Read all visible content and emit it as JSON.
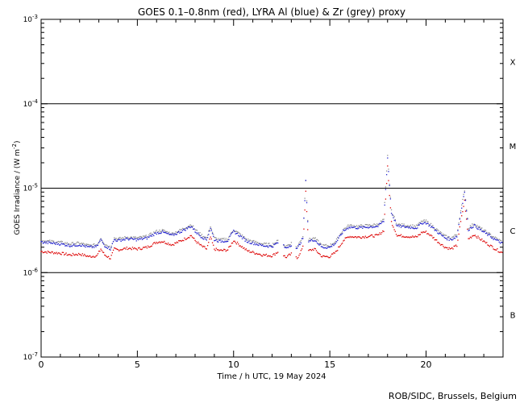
{
  "chart_data": {
    "type": "line",
    "title": "GOES 0.1–0.8nm (red), LYRA Al (blue) & Zr (grey) proxy",
    "xlabel": "Time / h UTC, 19 May 2024",
    "ylabel_main": "GOES Irradiance / (W m",
    "ylabel_exp": "-2",
    "ylabel_tail": ")",
    "xlim": [
      0,
      24
    ],
    "ylim_log10": [
      -7,
      -3
    ],
    "yscale": "log",
    "x_ticks": [
      0,
      5,
      10,
      15,
      20
    ],
    "x_tick_labels": [
      "0",
      "5",
      "10",
      "15",
      "20"
    ],
    "y_ticks": [
      {
        "base": "10",
        "exp": "-3",
        "log": -3
      },
      {
        "base": "10",
        "exp": "-4",
        "log": -4
      },
      {
        "base": "10",
        "exp": "-5",
        "log": -5
      },
      {
        "base": "10",
        "exp": "-6",
        "log": -6
      },
      {
        "base": "10",
        "exp": "-7",
        "log": -7
      }
    ],
    "class_lines_log10": [
      -4,
      -5,
      -6
    ],
    "flare_classes": [
      {
        "label": "X",
        "log": -3.5
      },
      {
        "label": "M",
        "log": -4.5
      },
      {
        "label": "C",
        "log": -5.5
      },
      {
        "label": "B",
        "log": -6.5
      }
    ],
    "series": [
      {
        "name": "GOES 0.1–0.8nm",
        "color": "#dd0000"
      },
      {
        "name": "LYRA Al proxy",
        "color": "#1f1fd0"
      },
      {
        "name": "Zr proxy",
        "color": "#909090"
      }
    ],
    "colors": {
      "goes": "#dd0000",
      "lyra_al": "#1f1fd0",
      "zr": "#909090"
    },
    "goes_x_hours": [
      0,
      0.5,
      1,
      1.5,
      2,
      2.5,
      2.9,
      3.1,
      3.3,
      3.6,
      3.8,
      4,
      4.5,
      5,
      5.5,
      6,
      6.3,
      6.8,
      7.3,
      7.8,
      8,
      8.3,
      8.6,
      8.8,
      9,
      9.3,
      9.7,
      10,
      10.3,
      10.7,
      11,
      11.5,
      12,
      12.4,
      12.7,
      13,
      13.3,
      13.6,
      13.75,
      13.9,
      14.2,
      14.6,
      15,
      15.3,
      15.7,
      16,
      16.5,
      17,
      17.5,
      17.8,
      18,
      18.2,
      18.5,
      19,
      19.5,
      19.8,
      20,
      20.3,
      20.7,
      21,
      21.3,
      21.6,
      21.8,
      22,
      22.2,
      22.5,
      22.8,
      23.2,
      23.6,
      24
    ],
    "goes_log10_irradiance": [
      -5.75,
      -5.76,
      -5.77,
      -5.79,
      -5.78,
      -5.81,
      -5.8,
      -5.72,
      -5.79,
      -5.83,
      -5.72,
      -5.73,
      -5.71,
      -5.72,
      -5.7,
      -5.64,
      -5.63,
      -5.67,
      -5.62,
      -5.56,
      -5.62,
      -5.68,
      -5.72,
      -5.58,
      -5.72,
      -5.74,
      -5.73,
      -5.62,
      -5.67,
      -5.74,
      -5.76,
      -5.79,
      -5.8,
      -5.74,
      -5.82,
      -5.78,
      -5.83,
      -5.7,
      -5.03,
      -5.74,
      -5.72,
      -5.81,
      -5.81,
      -5.76,
      -5.62,
      -5.57,
      -5.58,
      -5.57,
      -5.56,
      -5.5,
      -4.75,
      -5.4,
      -5.56,
      -5.57,
      -5.58,
      -5.52,
      -5.52,
      -5.57,
      -5.65,
      -5.7,
      -5.72,
      -5.68,
      -5.4,
      -5.15,
      -5.6,
      -5.55,
      -5.6,
      -5.66,
      -5.72,
      -5.77
    ]
  }
}
